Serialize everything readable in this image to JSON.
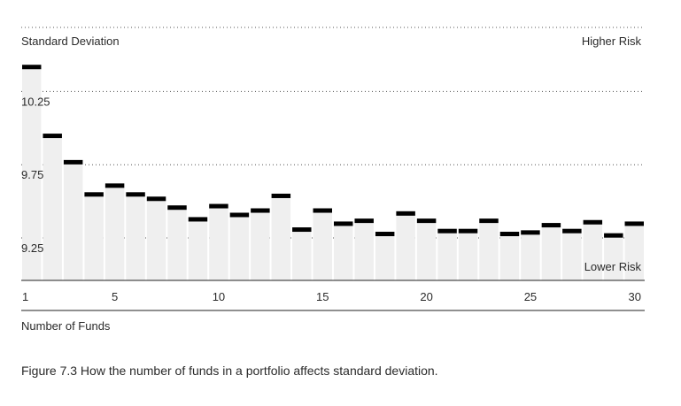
{
  "caption": "Figure 7.3   How the number of funds in a portfolio affects standard deviation.",
  "chart_data": {
    "type": "bar",
    "ylabel": "Standard Deviation",
    "xlabel": "Number of Funds",
    "annotation_top": "Higher Risk",
    "annotation_bottom": "Lower Risk",
    "x": [
      1,
      2,
      3,
      4,
      5,
      6,
      7,
      8,
      9,
      10,
      11,
      12,
      13,
      14,
      15,
      16,
      17,
      18,
      19,
      20,
      21,
      22,
      23,
      24,
      25,
      26,
      27,
      28,
      29,
      30
    ],
    "values": [
      10.42,
      9.95,
      9.77,
      9.55,
      9.61,
      9.55,
      9.52,
      9.46,
      9.38,
      9.47,
      9.41,
      9.44,
      9.54,
      9.31,
      9.44,
      9.35,
      9.37,
      9.28,
      9.42,
      9.37,
      9.3,
      9.3,
      9.37,
      9.28,
      9.29,
      9.34,
      9.3,
      9.36,
      9.27,
      9.35
    ],
    "ylim": [
      8.96,
      10.5
    ],
    "yticks": [
      "9.25",
      "9.75",
      "10.25"
    ],
    "ytick_values": [
      9.25,
      9.75,
      10.25
    ],
    "xtick_labels": [
      "1",
      "5",
      "10",
      "15",
      "20",
      "25",
      "30"
    ],
    "xtick_values": [
      1,
      5,
      10,
      15,
      20,
      25,
      30
    ],
    "grid": "dotted horizontal",
    "colors": {
      "bar": "#efefef",
      "marker": "#000000",
      "grid": "#555555",
      "axis": "#222222"
    }
  }
}
